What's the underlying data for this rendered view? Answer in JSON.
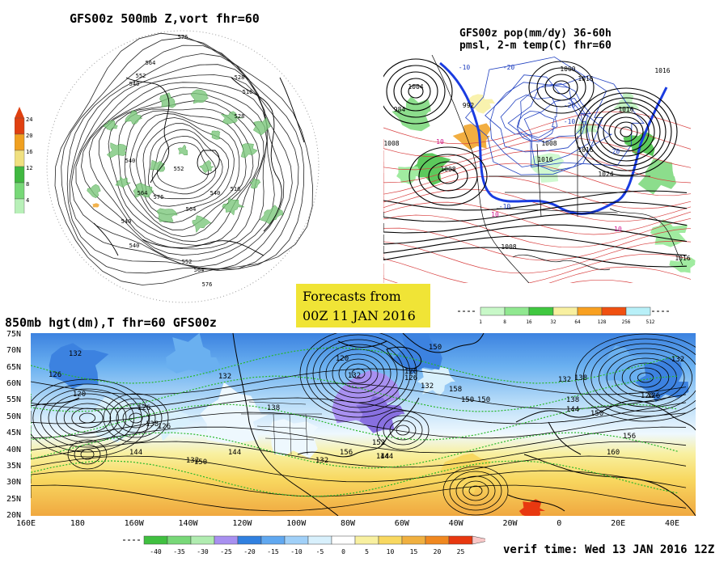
{
  "panels": {
    "top_left": {
      "title": "GFS00z   500mb  Z,vort    fhr=60",
      "colorbar_ticks": [
        "24",
        "20",
        "16",
        "12",
        "8",
        "4"
      ],
      "colorbar_colors": [
        "#e04010",
        "#f0a020",
        "#f0e080",
        "#40b840",
        "#78d878",
        "#b8f0b8"
      ],
      "contour_labels": [
        "576",
        "564",
        "552",
        "540",
        "528",
        "516",
        "540",
        "564",
        "576",
        "564",
        "552",
        "540",
        "516",
        "528",
        "540",
        "540",
        "552",
        "564",
        "576"
      ]
    },
    "top_right": {
      "title_line1": "GFS00z pop(mm/dy) 36-60h",
      "title_line2": "pmsl, 2-m temp(C)  fhr=60",
      "pressure_labels": [
        "1004",
        "992",
        "1000",
        "984",
        "1008",
        "1016",
        "1008",
        "1016",
        "1024",
        "1016",
        "1008",
        "1016",
        "1016",
        "1008",
        "1016"
      ],
      "temp_labels": [
        "-10",
        "-20",
        "-20",
        "-10",
        "10",
        "10",
        "10",
        "-10",
        "-20"
      ],
      "colorbar_ticks": [
        "1",
        "8",
        "16",
        "32",
        "64",
        "128",
        "256",
        "512"
      ],
      "colorbar_colors": [
        "#c8f8c8",
        "#90e890",
        "#40c840",
        "#f8f0a0",
        "#f8a020",
        "#f05010",
        "#b8f0f8"
      ]
    },
    "banner": {
      "line1": "Forecasts from",
      "line2": "00Z 11 JAN 2016"
    },
    "bottom": {
      "title": "850mb hgt(dm),T  fhr=60 GFS00z",
      "lat_labels": [
        "75N",
        "70N",
        "65N",
        "60N",
        "55N",
        "50N",
        "45N",
        "40N",
        "35N",
        "30N",
        "25N",
        "20N"
      ],
      "lon_labels": [
        "160E",
        "180",
        "160W",
        "140W",
        "120W",
        "100W",
        "80W",
        "60W",
        "40W",
        "20W",
        "0",
        "20E",
        "40E"
      ],
      "height_labels": [
        "132",
        "126",
        "120",
        "126",
        "132",
        "138",
        "126",
        "132",
        "120",
        "150",
        "132",
        "126",
        "132",
        "138",
        "144",
        "150",
        "156",
        "144",
        "150",
        "138",
        "132",
        "126",
        "120",
        "132",
        "138",
        "144",
        "150",
        "156",
        "160",
        "144",
        "152",
        "150",
        "158",
        "126",
        "132",
        "144"
      ],
      "temp_colorbar_ticks": [
        "-40",
        "-35",
        "-30",
        "-25",
        "-20",
        "-15",
        "-10",
        "-5",
        "0",
        "5",
        "10",
        "15",
        "20",
        "25"
      ],
      "temp_colorbar_colors": [
        "#40c040",
        "#78d878",
        "#b0ecb0",
        "#a890f0",
        "#3080e0",
        "#60a8f0",
        "#a0d0f8",
        "#d8f0fc",
        "#ffffff",
        "#f8f0a0",
        "#f8d860",
        "#f0b040",
        "#f08820",
        "#e83810"
      ],
      "verif_time": "verif time: Wed 13 JAN 2016 12Z"
    }
  }
}
